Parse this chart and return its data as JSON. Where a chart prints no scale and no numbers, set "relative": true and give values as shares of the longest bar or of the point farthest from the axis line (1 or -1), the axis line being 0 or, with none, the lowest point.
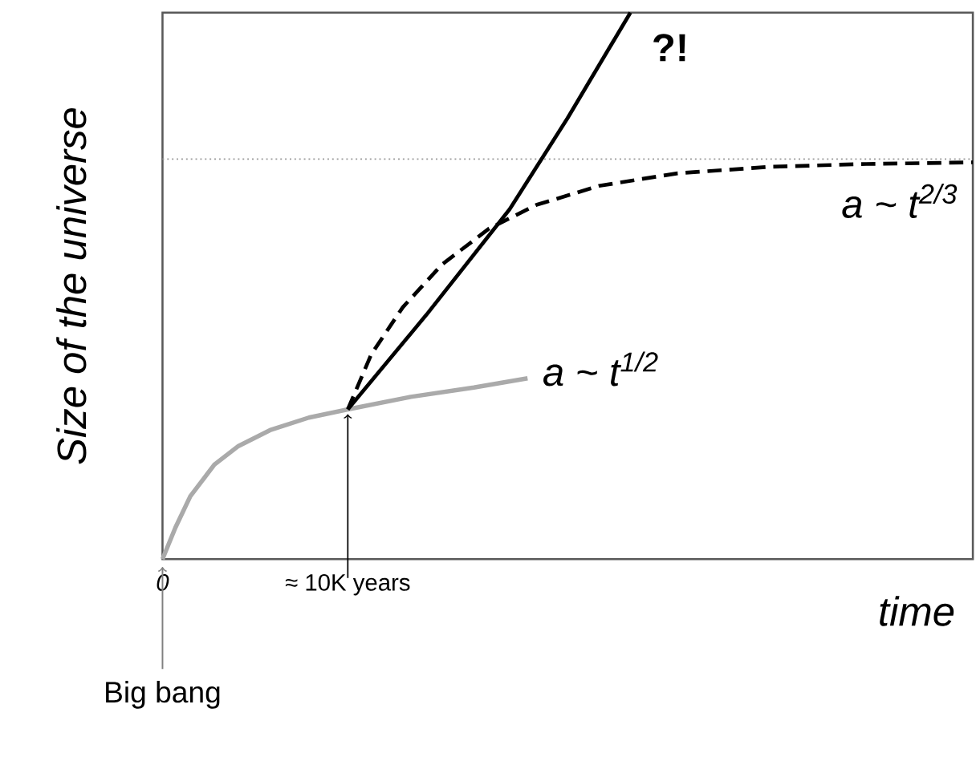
{
  "chart_data": {
    "type": "line",
    "relative": true,
    "xlabel": "time",
    "ylabel": "Size of the universe",
    "xlim": [
      0,
      43730
    ],
    "xticks": [
      0,
      {
        "value": 10000,
        "label": "≈ 10K years"
      }
    ],
    "series": [
      {
        "name": "a ~ t$^{1/2}$",
        "color": "#aaaaaa",
        "line_style": "solid",
        "x": [
          0,
          700,
          1500,
          2800,
          4100,
          5800,
          7900,
          10000,
          13400,
          16800,
          19700
        ],
        "values": [
          0,
          0.058,
          0.115,
          0.173,
          0.207,
          0.236,
          0.259,
          0.274,
          0.297,
          0.314,
          0.331
        ]
      },
      {
        "name": "a ~ t$^{2/3}$",
        "color": "#000000",
        "line_style": "dashed",
        "x": [
          10000,
          11270,
          12970,
          15080,
          17630,
          20170,
          23560,
          27800,
          32880,
          37970,
          43730
        ],
        "values": [
          0.274,
          0.375,
          0.461,
          0.539,
          0.605,
          0.648,
          0.683,
          0.706,
          0.718,
          0.723,
          0.726
        ]
      },
      {
        "name": "?!",
        "color": "#000000",
        "line_style": "solid",
        "x": [
          10000,
          14240,
          18730,
          21860,
          25250
        ],
        "values": [
          0.274,
          0.447,
          0.64,
          0.807,
          1
        ]
      }
    ],
    "ref_lines": [
      {
        "axis": "y",
        "value": 0.732,
        "color": "#999999",
        "line_style": "dotted"
      }
    ],
    "annotations": [
      {
        "text": "Big bang",
        "x": 0,
        "y": 0
      }
    ]
  }
}
